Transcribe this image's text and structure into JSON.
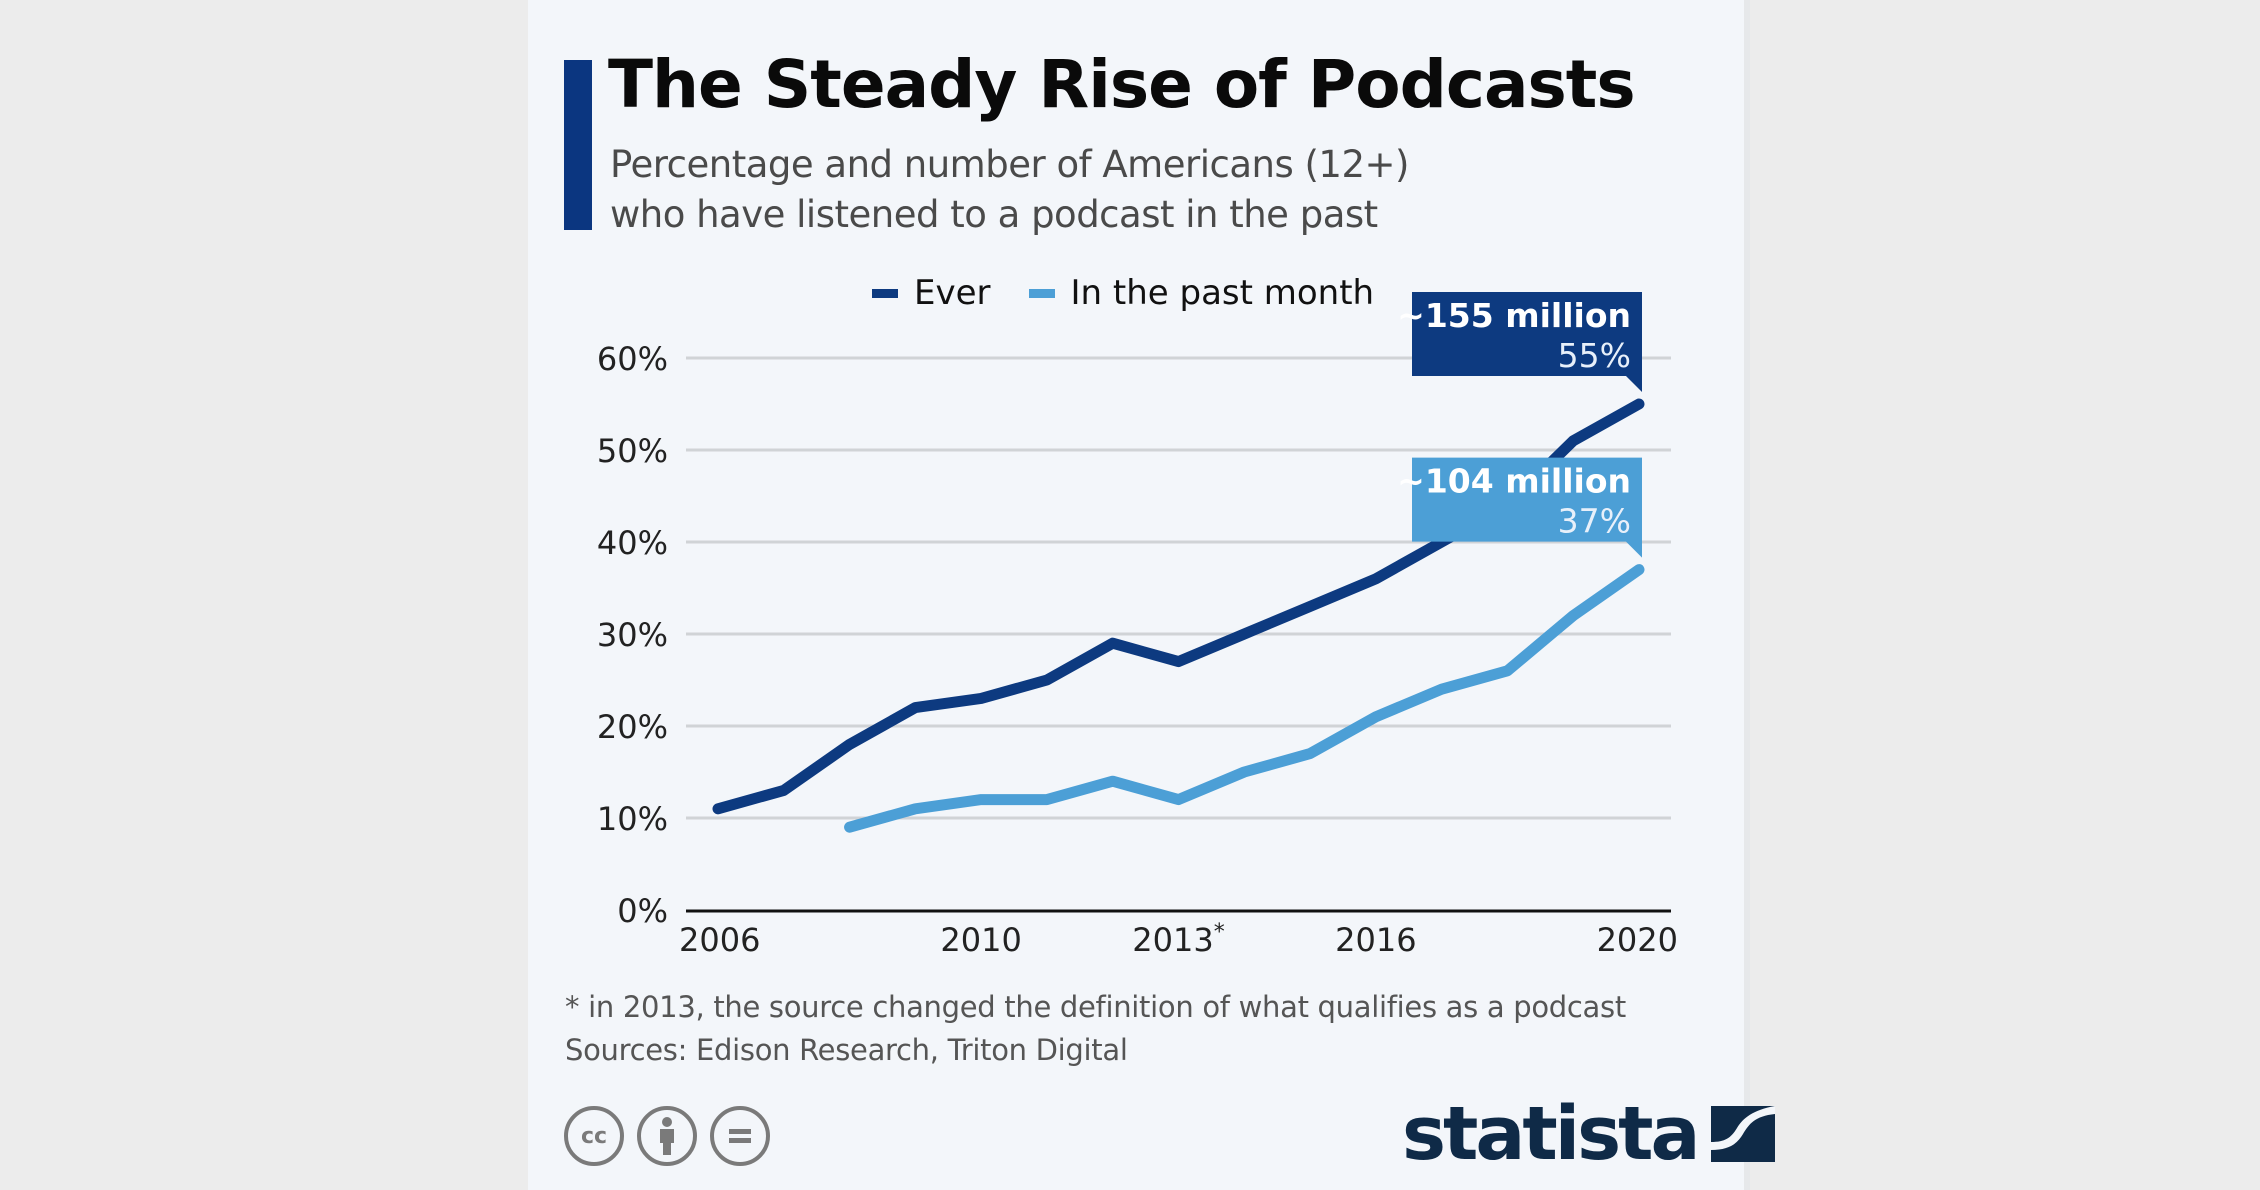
{
  "header": {
    "title": "The Steady Rise of Podcasts",
    "subtitle_lines": [
      "Percentage and number of Americans (12+)",
      "who have listened to a podcast in the past"
    ]
  },
  "colors": {
    "accent": "#0b3680",
    "ever": "#0d3a80",
    "past_month": "#4c9fd6",
    "gridline": "#d0d3d6",
    "axis": "#111111",
    "logo": "#0f2a47"
  },
  "legend": [
    {
      "label": "Ever",
      "color": "#0d3a80"
    },
    {
      "label": "In the past month",
      "color": "#4c9fd6"
    }
  ],
  "chart_data": {
    "type": "line",
    "title": "The Steady Rise of Podcasts",
    "subtitle": "Percentage and number of Americans (12+) who have listened to a podcast in the past",
    "xlabel": "",
    "ylabel": "",
    "x": [
      2006,
      2007,
      2008,
      2009,
      2010,
      2011,
      2012,
      2013,
      2014,
      2015,
      2016,
      2017,
      2018,
      2019,
      2020
    ],
    "x_tick_labels": [
      {
        "value": 2006,
        "label": "2006"
      },
      {
        "value": 2010,
        "label": "2010"
      },
      {
        "value": 2013,
        "label": "2013*"
      },
      {
        "value": 2016,
        "label": "2016"
      },
      {
        "value": 2020,
        "label": "2020"
      }
    ],
    "y_ticks": [
      0,
      10,
      20,
      30,
      40,
      50,
      60
    ],
    "y_tick_suffix": "%",
    "ylim": [
      0,
      60
    ],
    "grid": true,
    "legend_position": "top-center",
    "series": [
      {
        "name": "Ever",
        "color": "#0d3a80",
        "values": [
          11,
          13,
          18,
          22,
          23,
          25,
          29,
          27,
          30,
          33,
          36,
          40,
          44,
          51,
          55
        ]
      },
      {
        "name": "In the past month",
        "color": "#4c9fd6",
        "values": [
          null,
          null,
          9,
          11,
          12,
          12,
          14,
          12,
          15,
          17,
          21,
          24,
          26,
          32,
          37
        ]
      }
    ],
    "annotations": [
      {
        "series": "Ever",
        "x": 2020,
        "title": "~155 million",
        "value_label": "55%",
        "color": "#0d3a80"
      },
      {
        "series": "In the past month",
        "x": 2020,
        "title": "~104 million",
        "value_label": "37%",
        "color": "#4c9fd6"
      }
    ]
  },
  "footer": {
    "note": "* in 2013, the source changed the definition of what qualifies as a podcast",
    "sources": "Sources: Edison Research, Triton Digital",
    "license_icons": [
      "cc-icon",
      "attribution-icon",
      "no-derivatives-icon"
    ],
    "cc_label": "cc",
    "brand": "statista"
  }
}
